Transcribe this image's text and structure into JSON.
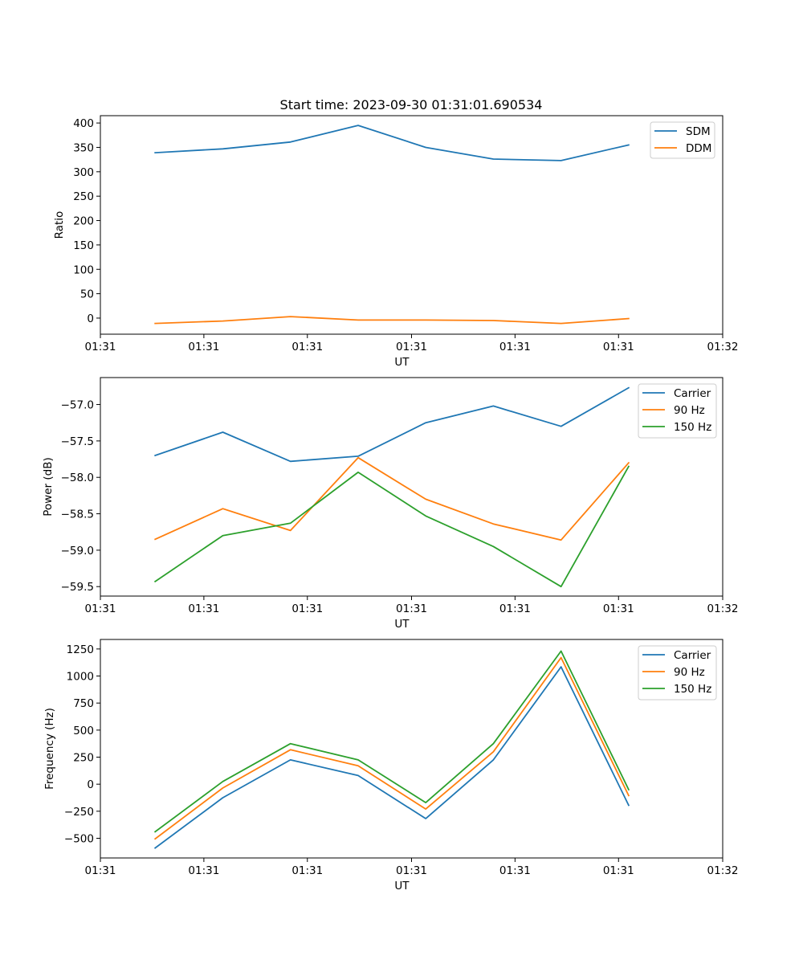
{
  "title": "Start time: 2023-09-30 01:31:01.690534",
  "colors": {
    "blue": "#1f77b4",
    "orange": "#ff7f0e",
    "green": "#2ca02c"
  },
  "chart_data": [
    {
      "type": "line",
      "xlabel": "UT",
      "ylabel": "Ratio",
      "x": [
        1,
        2,
        3,
        4,
        5,
        6,
        7,
        8
      ],
      "xlim": [
        0.19,
        9.39
      ],
      "xticks": [
        0.19,
        1.72,
        3.25,
        4.79,
        6.32,
        7.85,
        9.39
      ],
      "xtick_labels": [
        "01:31",
        "01:31",
        "01:31",
        "01:31",
        "01:31",
        "01:31",
        "01:32"
      ],
      "ylim": [
        -33,
        415
      ],
      "yticks": [
        0,
        50,
        100,
        150,
        200,
        250,
        300,
        350,
        400
      ],
      "ytick_labels": [
        "0",
        "50",
        "100",
        "150",
        "200",
        "250",
        "300",
        "350",
        "400"
      ],
      "legend_position": "top-right",
      "series": [
        {
          "name": "SDM",
          "color": "#1f77b4",
          "values": [
            339,
            347,
            361,
            395,
            350,
            326,
            323,
            355
          ]
        },
        {
          "name": "DDM",
          "color": "#ff7f0e",
          "values": [
            -11,
            -6,
            3,
            -4,
            -4,
            -5,
            -11,
            -1
          ]
        }
      ]
    },
    {
      "type": "line",
      "xlabel": "UT",
      "ylabel": "Power (dB)",
      "x": [
        1,
        2,
        3,
        4,
        5,
        6,
        7,
        8
      ],
      "xlim": [
        0.19,
        9.39
      ],
      "xticks": [
        0.19,
        1.72,
        3.25,
        4.79,
        6.32,
        7.85,
        9.39
      ],
      "xtick_labels": [
        "01:31",
        "01:31",
        "01:31",
        "01:31",
        "01:31",
        "01:31",
        "01:32"
      ],
      "ylim": [
        -59.63,
        -56.63
      ],
      "yticks": [
        -59.5,
        -59.0,
        -58.5,
        -58.0,
        -57.5,
        -57.0
      ],
      "ytick_labels": [
        "−59.5",
        "−59.0",
        "−58.5",
        "−58.0",
        "−57.5",
        "−57.0"
      ],
      "legend_position": "top-right",
      "series": [
        {
          "name": "Carrier",
          "color": "#1f77b4",
          "values": [
            -57.7,
            -57.38,
            -57.78,
            -57.71,
            -57.25,
            -57.02,
            -57.3,
            -56.77
          ]
        },
        {
          "name": "90 Hz",
          "color": "#ff7f0e",
          "values": [
            -58.85,
            -58.43,
            -58.73,
            -57.73,
            -58.3,
            -58.64,
            -58.86,
            -57.8
          ]
        },
        {
          "name": "150 Hz",
          "color": "#2ca02c",
          "values": [
            -59.43,
            -58.8,
            -58.63,
            -57.93,
            -58.53,
            -58.95,
            -59.5,
            -57.85
          ]
        }
      ]
    },
    {
      "type": "line",
      "xlabel": "UT",
      "ylabel": "Frequency (Hz)",
      "x": [
        1,
        2,
        3,
        4,
        5,
        6,
        7,
        8
      ],
      "xlim": [
        0.19,
        9.39
      ],
      "xticks": [
        0.19,
        1.72,
        3.25,
        4.79,
        6.32,
        7.85,
        9.39
      ],
      "xtick_labels": [
        "01:31",
        "01:31",
        "01:31",
        "01:31",
        "01:31",
        "01:31",
        "01:32"
      ],
      "ylim": [
        -682,
        1338
      ],
      "yticks": [
        -500,
        -250,
        0,
        250,
        500,
        750,
        1000,
        1250
      ],
      "ytick_labels": [
        "−500",
        "−250",
        "0",
        "250",
        "500",
        "750",
        "1000",
        "1250"
      ],
      "legend_position": "top-right",
      "series": [
        {
          "name": "Carrier",
          "color": "#1f77b4",
          "values": [
            -590,
            -125,
            225,
            80,
            -318,
            225,
            1085,
            -195
          ]
        },
        {
          "name": "90 Hz",
          "color": "#ff7f0e",
          "values": [
            -505,
            -35,
            318,
            170,
            -230,
            300,
            1170,
            -105
          ]
        },
        {
          "name": "150 Hz",
          "color": "#2ca02c",
          "values": [
            -440,
            25,
            375,
            225,
            -170,
            375,
            1230,
            -50
          ]
        }
      ]
    }
  ]
}
